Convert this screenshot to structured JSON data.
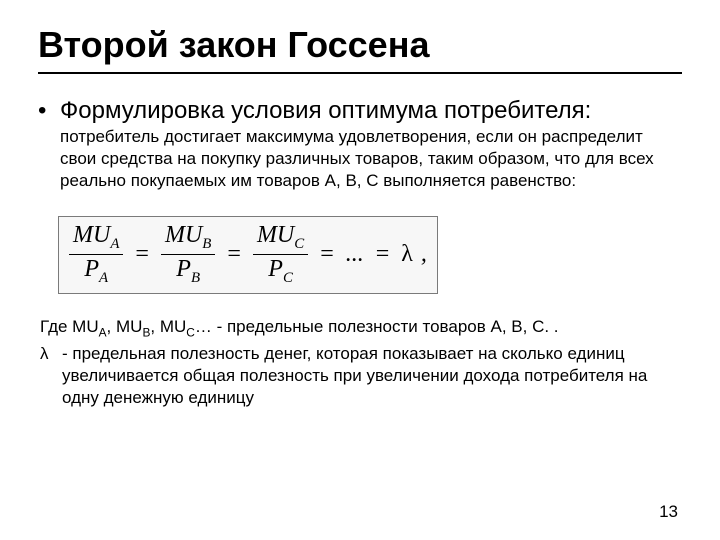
{
  "title": "Второй закон Госсена",
  "bullet": {
    "marker": "•",
    "lead": "Формулировка условия оптимума потребителя:",
    "rest": " потребитель достигает максимума удовлетворения, если он распределит свои средства на покупку различных товаров, таким образом, что для всех реально покупаемых им товаров A, B, C выполняется равенство:"
  },
  "formula": {
    "terms": [
      {
        "num_left": "MU",
        "num_sub": "A",
        "den_left": "P",
        "den_sub": "A"
      },
      {
        "num_left": "MU",
        "num_sub": "B",
        "den_left": "P",
        "den_sub": "B"
      },
      {
        "num_left": "MU",
        "num_sub": "C",
        "den_left": "P",
        "den_sub": "C"
      }
    ],
    "eq": "=",
    "dots": "...",
    "lambda": "λ",
    "comma": ","
  },
  "after": {
    "line1_pre": "Где MU",
    "line1_mid1": ", MU",
    "line1_mid2": ", MU",
    "line1_post": "… - предельные полезности товаров A, B, C. .",
    "sub_a": "A",
    "sub_b": "B",
    "sub_c": "C",
    "lambda": "λ",
    "line2": " - предельная полезность денег, которая показывает на сколько единиц увеличивается общая полезность при увеличении дохода потребителя на одну денежную единицу"
  },
  "page": "13",
  "style": {
    "background": "#ffffff",
    "text_color": "#000000",
    "title_fontsize": 36,
    "body_fontsize": 17,
    "lead_fontsize": 24,
    "formula_border": "#7a7a7a",
    "formula_bg": "#f7f7f7",
    "formula_fontsize": 24,
    "underline_color": "#000000"
  }
}
